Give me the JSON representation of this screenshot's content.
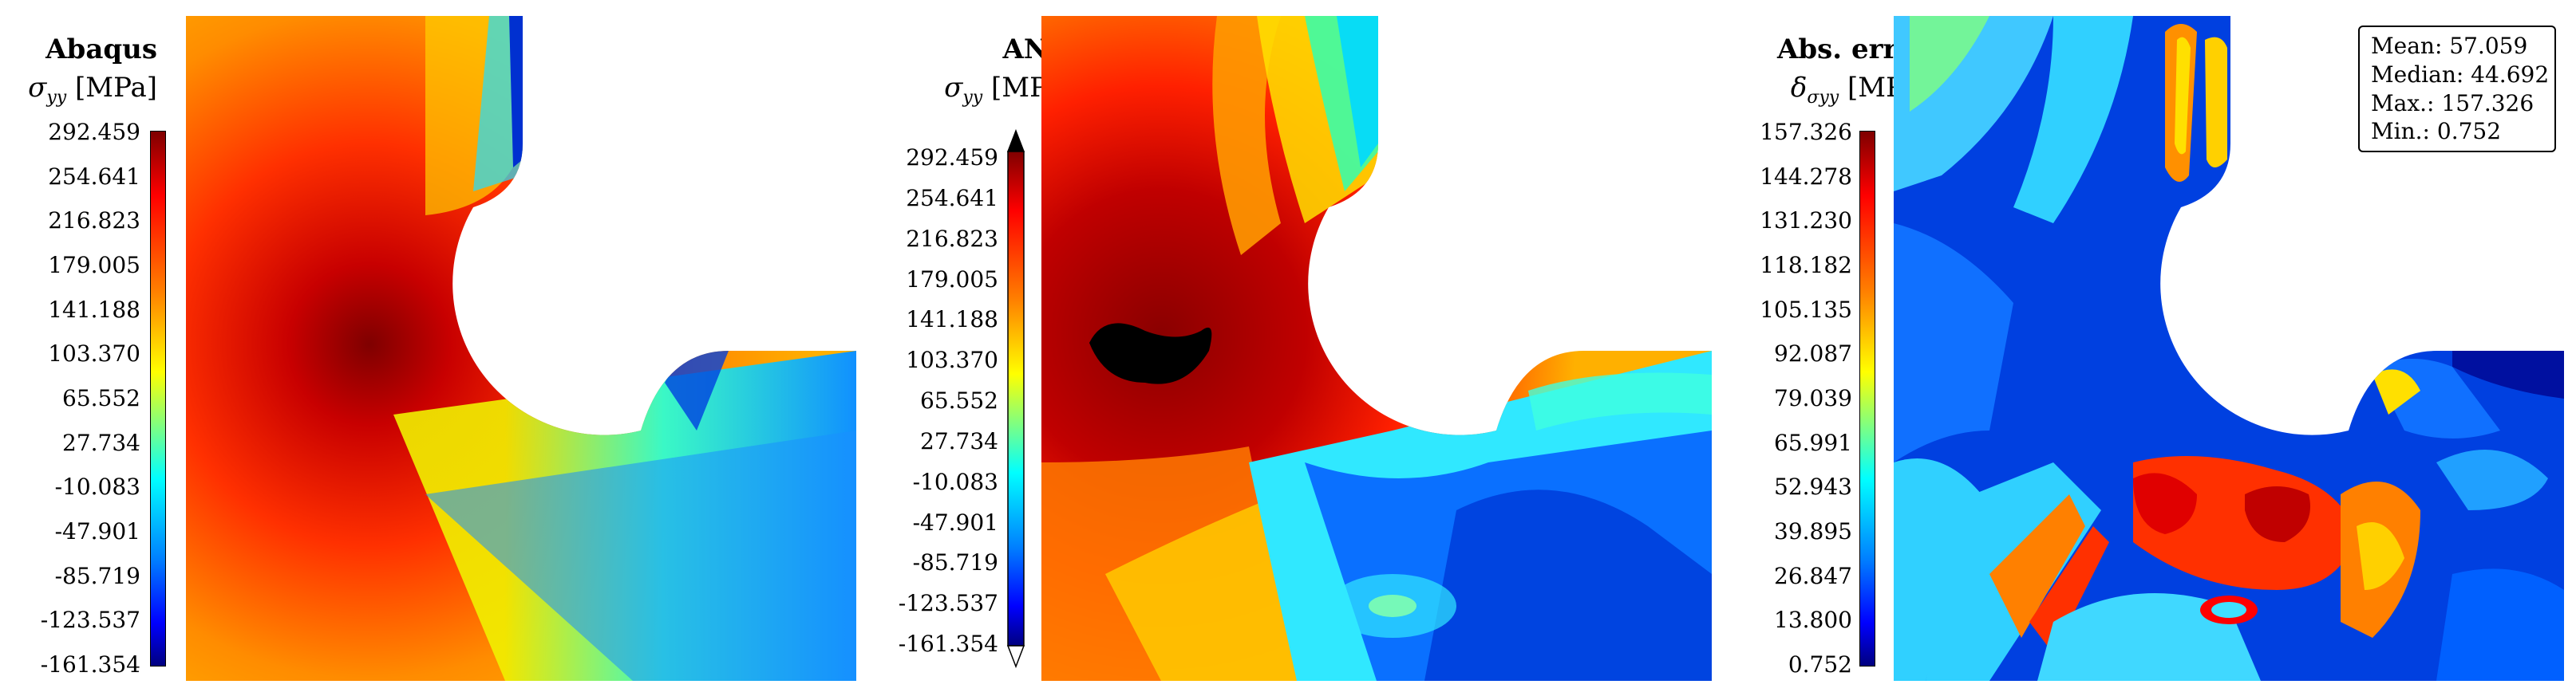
{
  "chart_data": [
    {
      "type": "heatmap",
      "title": "Abaqus",
      "quantity_symbol": "σ",
      "quantity_sub": "yy",
      "unit": "[MPa]",
      "colorbar_ticks": [
        "292.459",
        "254.641",
        "216.823",
        "179.005",
        "141.188",
        "103.370",
        "65.552",
        "27.734",
        "-10.083",
        "-47.901",
        "-85.719",
        "-123.537",
        "-161.354"
      ],
      "colormap": "jet",
      "range": [
        -161.354,
        292.459
      ]
    },
    {
      "type": "heatmap",
      "title": "ANN",
      "quantity_symbol": "σ",
      "quantity_sub": "yy",
      "unit": "[MPa]",
      "colorbar_ticks": [
        "292.459",
        "254.641",
        "216.823",
        "179.005",
        "141.188",
        "103.370",
        "65.552",
        "27.734",
        "-10.083",
        "-47.901",
        "-85.719",
        "-123.537",
        "-161.354"
      ],
      "colormap": "jet",
      "range": [
        -161.354,
        292.459
      ],
      "extend": "both"
    },
    {
      "type": "heatmap",
      "title": "Abs. error",
      "quantity_symbol": "δ",
      "quantity_sub": "σyy",
      "unit": "[MPa]",
      "colorbar_ticks": [
        "157.326",
        "144.278",
        "131.230",
        "118.182",
        "105.135",
        "92.087",
        "79.039",
        "65.991",
        "52.943",
        "39.895",
        "26.847",
        "13.800",
        "0.752"
      ],
      "colormap": "jet",
      "range": [
        0.752,
        157.326
      ],
      "stats": [
        "Mean: 57.059",
        "Median: 44.692",
        "Max.: 157.326",
        "Min.: 0.752"
      ]
    }
  ],
  "colors": {
    "dark_red": "#7f0000",
    "red": "#ff1a00",
    "orange": "#ff8c00",
    "yellow": "#f0f000",
    "cyan": "#00e5ff",
    "blue": "#0050ff",
    "dark_blue": "#00007f"
  }
}
